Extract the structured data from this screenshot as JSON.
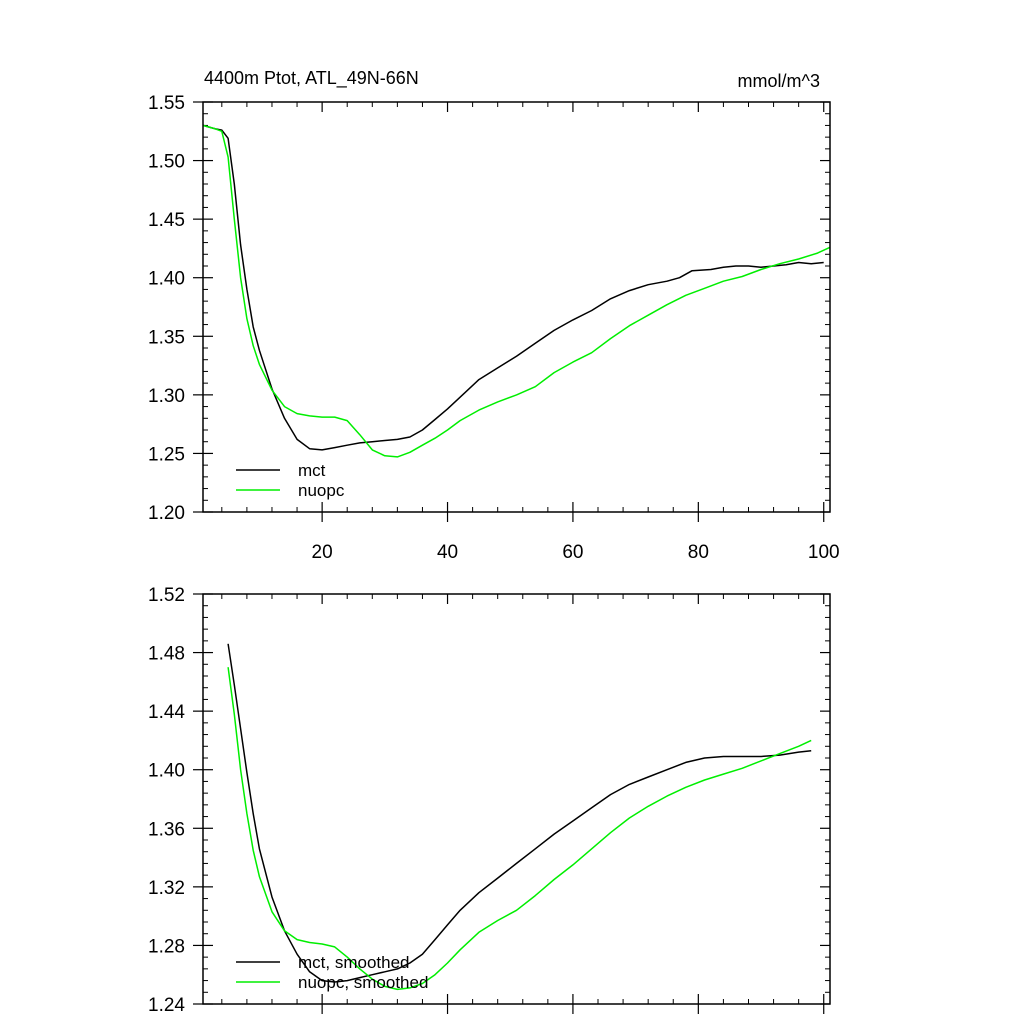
{
  "figure": {
    "title_left": "4400m Ptot, ATL_49N-66N",
    "title_right": "mmol/m^3"
  },
  "colors": {
    "mct": "#000000",
    "nuopc": "#00ee00",
    "axes": "#000000",
    "background": "#ffffff"
  },
  "chart_data": [
    {
      "type": "line",
      "title": "4400m Ptot, ATL_49N-66N",
      "units": "mmol/m^3",
      "xlabel": "",
      "ylabel": "",
      "xlim": [
        1,
        101
      ],
      "ylim": [
        1.2,
        1.55
      ],
      "xticks": [
        20,
        40,
        60,
        80,
        100
      ],
      "xtick_labels": [
        "20",
        "40",
        "60",
        "80",
        "100"
      ],
      "yticks": [
        1.2,
        1.25,
        1.3,
        1.35,
        1.4,
        1.45,
        1.5,
        1.55
      ],
      "ytick_labels": [
        "1.20",
        "1.25",
        "1.30",
        "1.35",
        "1.40",
        "1.45",
        "1.50",
        "1.55"
      ],
      "legend_position": "bottom-left",
      "series": [
        {
          "name": "mct",
          "color": "#000000",
          "x": [
            1,
            3,
            4,
            5,
            6,
            7,
            8,
            9,
            10,
            12,
            14,
            16,
            18,
            20,
            22,
            24,
            26,
            28,
            30,
            32,
            34,
            36,
            38,
            40,
            42,
            45,
            48,
            51,
            54,
            57,
            60,
            63,
            66,
            69,
            72,
            75,
            77,
            79,
            82,
            84,
            86,
            88,
            90,
            92,
            94,
            96,
            98,
            100
          ],
          "y": [
            1.53,
            1.527,
            1.526,
            1.519,
            1.48,
            1.428,
            1.39,
            1.358,
            1.338,
            1.305,
            1.28,
            1.262,
            1.254,
            1.253,
            1.255,
            1.257,
            1.259,
            1.26,
            1.261,
            1.262,
            1.264,
            1.27,
            1.279,
            1.288,
            1.298,
            1.313,
            1.323,
            1.333,
            1.344,
            1.355,
            1.364,
            1.372,
            1.382,
            1.389,
            1.394,
            1.397,
            1.4,
            1.406,
            1.407,
            1.409,
            1.41,
            1.41,
            1.409,
            1.41,
            1.411,
            1.413,
            1.412,
            1.413
          ]
        },
        {
          "name": "nuopc",
          "color": "#00ee00",
          "x": [
            1,
            3,
            4,
            5,
            6,
            7,
            8,
            9,
            10,
            12,
            14,
            16,
            18,
            20,
            22,
            24,
            26,
            28,
            30,
            32,
            34,
            36,
            38,
            40,
            42,
            45,
            48,
            51,
            54,
            57,
            60,
            63,
            66,
            69,
            72,
            75,
            78,
            81,
            84,
            87,
            90,
            93,
            96,
            99,
            101
          ],
          "y": [
            1.53,
            1.527,
            1.525,
            1.503,
            1.45,
            1.4,
            1.365,
            1.342,
            1.326,
            1.304,
            1.29,
            1.284,
            1.282,
            1.281,
            1.281,
            1.278,
            1.266,
            1.253,
            1.248,
            1.247,
            1.251,
            1.257,
            1.263,
            1.27,
            1.278,
            1.287,
            1.294,
            1.3,
            1.307,
            1.319,
            1.328,
            1.336,
            1.348,
            1.359,
            1.368,
            1.377,
            1.385,
            1.391,
            1.397,
            1.401,
            1.407,
            1.412,
            1.416,
            1.421,
            1.426
          ]
        }
      ]
    },
    {
      "type": "line",
      "title": "",
      "xlabel": "",
      "ylabel": "",
      "xlim": [
        1,
        101
      ],
      "ylim": [
        1.24,
        1.52
      ],
      "xticks": [
        20,
        40,
        60,
        80,
        100
      ],
      "xtick_labels": [],
      "yticks": [
        1.24,
        1.28,
        1.32,
        1.36,
        1.4,
        1.44,
        1.48,
        1.52
      ],
      "ytick_labels": [
        "1.24",
        "1.28",
        "1.32",
        "1.36",
        "1.40",
        "1.44",
        "1.48",
        "1.52"
      ],
      "legend_position": "bottom-left",
      "series": [
        {
          "name": "mct, smoothed",
          "color": "#000000",
          "x": [
            5,
            6,
            7,
            8,
            9,
            10,
            12,
            14,
            16,
            18,
            20,
            22,
            24,
            26,
            28,
            30,
            32,
            34,
            36,
            38,
            40,
            42,
            45,
            48,
            51,
            54,
            57,
            60,
            63,
            66,
            69,
            72,
            75,
            78,
            81,
            84,
            87,
            90,
            93,
            96,
            98
          ],
          "y": [
            1.486,
            1.458,
            1.428,
            1.398,
            1.37,
            1.346,
            1.313,
            1.29,
            1.274,
            1.262,
            1.256,
            1.255,
            1.256,
            1.258,
            1.26,
            1.262,
            1.264,
            1.268,
            1.274,
            1.284,
            1.294,
            1.304,
            1.316,
            1.326,
            1.336,
            1.346,
            1.356,
            1.365,
            1.374,
            1.383,
            1.39,
            1.395,
            1.4,
            1.405,
            1.408,
            1.409,
            1.409,
            1.409,
            1.41,
            1.412,
            1.413
          ]
        },
        {
          "name": "nuopc, smoothed",
          "color": "#00ee00",
          "x": [
            5,
            6,
            7,
            8,
            9,
            10,
            12,
            14,
            16,
            18,
            20,
            22,
            24,
            26,
            28,
            30,
            32,
            34,
            36,
            38,
            40,
            42,
            45,
            48,
            51,
            54,
            57,
            60,
            63,
            66,
            69,
            72,
            75,
            78,
            81,
            84,
            87,
            90,
            93,
            96,
            98
          ],
          "y": [
            1.47,
            1.438,
            1.4,
            1.37,
            1.345,
            1.327,
            1.303,
            1.29,
            1.284,
            1.282,
            1.281,
            1.279,
            1.272,
            1.264,
            1.257,
            1.252,
            1.25,
            1.251,
            1.254,
            1.26,
            1.268,
            1.277,
            1.289,
            1.297,
            1.304,
            1.314,
            1.325,
            1.335,
            1.346,
            1.357,
            1.367,
            1.375,
            1.382,
            1.388,
            1.393,
            1.397,
            1.401,
            1.406,
            1.411,
            1.416,
            1.42
          ]
        }
      ]
    }
  ]
}
